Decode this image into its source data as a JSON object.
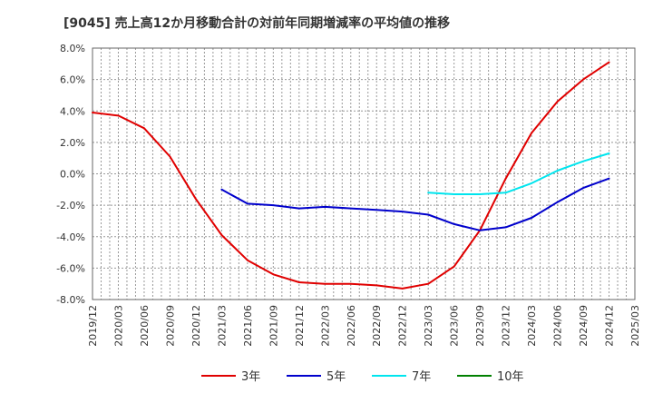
{
  "chart_data": {
    "type": "line",
    "title": "[9045]  売上高12か月移動合計の対前年同期増減率の平均値の推移",
    "xlabel": "",
    "ylabel": "",
    "ylim": [
      -8,
      8
    ],
    "yticks": [
      8,
      6,
      4,
      2,
      0,
      -2,
      -4,
      -6,
      -8
    ],
    "ytick_labels": [
      "8.0%",
      "6.0%",
      "4.0%",
      "2.0%",
      "0.0%",
      "-2.0%",
      "-4.0%",
      "-6.0%",
      "-8.0%"
    ],
    "categories": [
      "2019/12",
      "2020/03",
      "2020/06",
      "2020/09",
      "2020/12",
      "2021/03",
      "2021/06",
      "2021/09",
      "2021/12",
      "2022/03",
      "2022/06",
      "2022/09",
      "2022/12",
      "2023/03",
      "2023/06",
      "2023/09",
      "2023/12",
      "2024/03",
      "2024/06",
      "2024/09",
      "2024/12",
      "2025/03"
    ],
    "grid": true,
    "legend_position": "bottom",
    "series": [
      {
        "name": "3年",
        "color": "#e00000",
        "values": [
          3.9,
          3.7,
          2.9,
          1.1,
          -1.6,
          -3.9,
          -5.5,
          -6.4,
          -6.9,
          -7.0,
          -7.0,
          -7.1,
          -7.3,
          -7.0,
          -5.9,
          -3.6,
          -0.3,
          2.6,
          4.6,
          6.0,
          7.1,
          null
        ]
      },
      {
        "name": "5年",
        "color": "#0000cc",
        "values": [
          null,
          null,
          null,
          null,
          null,
          -1.0,
          -1.9,
          -2.0,
          -2.2,
          -2.1,
          -2.2,
          -2.3,
          -2.4,
          -2.6,
          -3.2,
          -3.6,
          -3.4,
          -2.8,
          -1.8,
          -0.9,
          -0.3,
          null
        ]
      },
      {
        "name": "7年",
        "color": "#00e5ee",
        "values": [
          null,
          null,
          null,
          null,
          null,
          null,
          null,
          null,
          null,
          null,
          null,
          null,
          null,
          -1.2,
          -1.3,
          -1.3,
          -1.2,
          -0.6,
          0.2,
          0.8,
          1.3,
          null
        ]
      },
      {
        "name": "10年",
        "color": "#008000",
        "values": [
          null,
          null,
          null,
          null,
          null,
          null,
          null,
          null,
          null,
          null,
          null,
          null,
          null,
          null,
          null,
          null,
          null,
          null,
          null,
          null,
          null,
          null
        ]
      }
    ]
  }
}
